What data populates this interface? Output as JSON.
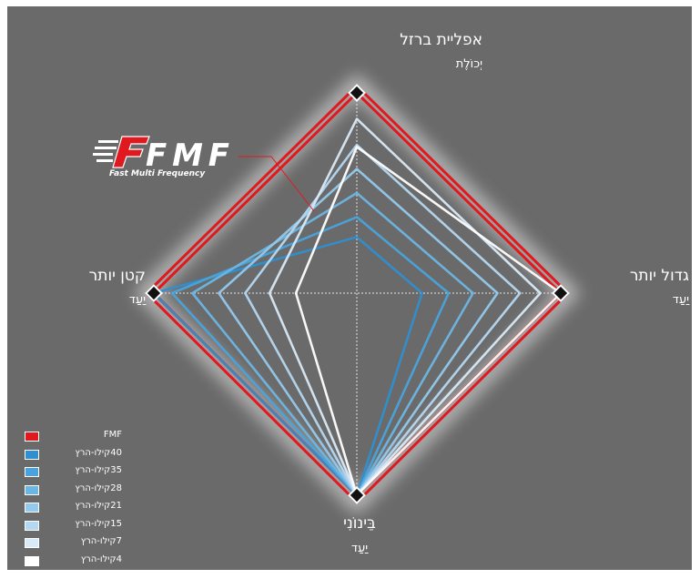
{
  "chart_data": {
    "type": "radar",
    "axes": [
      {
        "id": "top",
        "label": "אפליית ברזל",
        "sublabel": "יְכוֹלֶת"
      },
      {
        "id": "right",
        "label": "גדול יותר",
        "sublabel": "יַעַד"
      },
      {
        "id": "bottom",
        "label": "בֵּינוֹנִי",
        "sublabel": "יַעַד"
      },
      {
        "id": "left",
        "label": "קטן יותר",
        "sublabel": "יַעַד"
      }
    ],
    "axis_order": [
      "top",
      "right",
      "bottom",
      "left"
    ],
    "range": [
      0,
      1
    ],
    "series": [
      {
        "name": "FMF",
        "color": "#e0191f",
        "values": [
          1.0,
          1.0,
          1.0,
          1.0
        ]
      },
      {
        "name": "40קילו-הרץ",
        "color": "#2f8fd0",
        "values": [
          0.28,
          0.32,
          1.0,
          1.0
        ]
      },
      {
        "name": "35קילו-הרץ",
        "color": "#4aa3dc",
        "values": [
          0.38,
          0.45,
          1.0,
          0.91
        ]
      },
      {
        "name": "28קילו-הרץ",
        "color": "#6db6e4",
        "values": [
          0.5,
          0.57,
          1.0,
          0.81
        ]
      },
      {
        "name": "21קילו-הרץ",
        "color": "#93c9ec",
        "values": [
          0.62,
          0.69,
          1.0,
          0.68
        ]
      },
      {
        "name": "15קילו-הרץ",
        "color": "#b5d8f1",
        "values": [
          0.74,
          0.8,
          1.0,
          0.55
        ]
      },
      {
        "name": "7קילו-הרץ",
        "color": "#d8e9f7",
        "values": [
          0.87,
          0.9,
          1.0,
          0.43
        ]
      },
      {
        "name": "4קילו-הרץ",
        "color": "#ffffff",
        "values": [
          0.73,
          1.0,
          1.0,
          0.3
        ]
      }
    ],
    "grid": true
  },
  "logo": {
    "text": "FMF",
    "tagline": "Fast Multi Frequency"
  },
  "colors": {
    "background": "#6a6a6a",
    "fmf_red": "#e0191f"
  }
}
